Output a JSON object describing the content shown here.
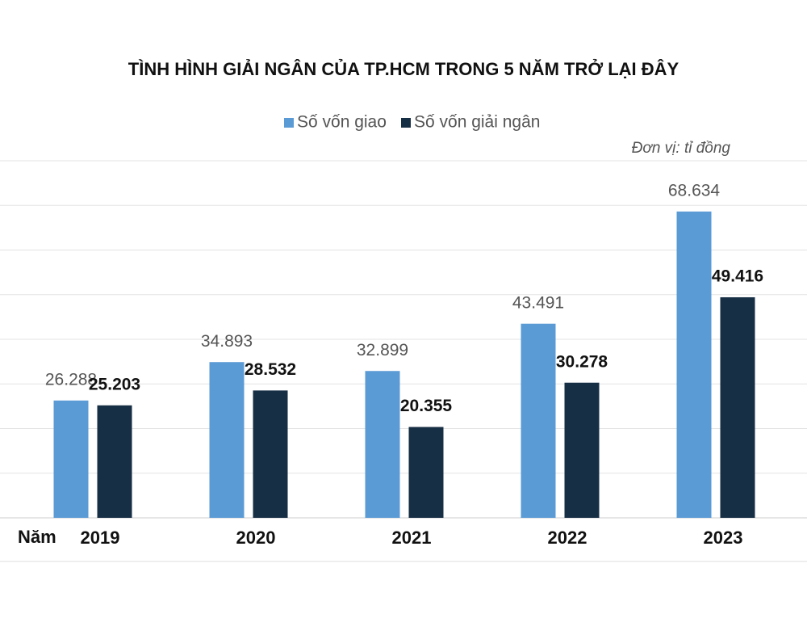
{
  "chart_data": {
    "type": "bar",
    "title": "TÌNH HÌNH GIẢI NGÂN CỦA TP.HCM TRONG 5 NĂM TRỞ LẠI ĐÂY",
    "unit_note": "Đơn vị: tỉ đồng",
    "xlabel": "Năm",
    "categories": [
      "2019",
      "2020",
      "2021",
      "2022",
      "2023"
    ],
    "series": [
      {
        "name": "Số vốn giao",
        "color": "#5b9bd5",
        "values": [
          26288,
          34893,
          32899,
          43491,
          68634
        ],
        "value_labels": [
          "26.288",
          "34.893",
          "32.899",
          "43.491",
          "68.634"
        ]
      },
      {
        "name": "Số vốn giải ngân",
        "color": "#172f45",
        "values": [
          25203,
          28532,
          20355,
          30278,
          49416
        ],
        "value_labels": [
          "25.203",
          "28.532",
          "20.355",
          "30.278",
          "49.416"
        ]
      }
    ],
    "ylim": [
      0,
      80000
    ],
    "yticks": [
      0,
      10000,
      20000,
      30000,
      40000,
      50000,
      60000,
      70000,
      80000
    ],
    "grid": true
  }
}
